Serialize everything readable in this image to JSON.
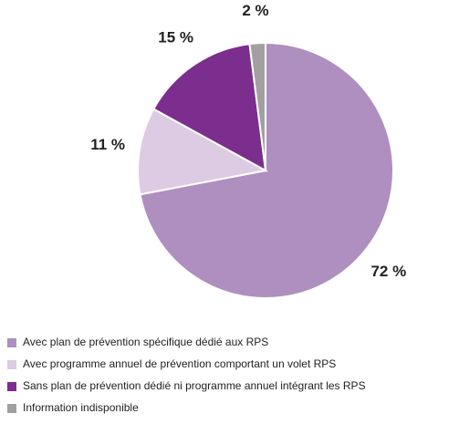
{
  "chart_data": {
    "type": "pie",
    "categories": [
      "Avec plan de prévention spécifique dédié aux RPS",
      "Avec programme annuel de prévention comportant un volet RPS",
      "Sans plan de prévention dédié ni programme annuel intégrant les RPS",
      "Information indisponible"
    ],
    "values": [
      72,
      11,
      15,
      2
    ],
    "value_labels": [
      "72 %",
      "11 %",
      "15 %",
      "2 %"
    ],
    "colors": [
      "#ae8fbf",
      "#dccbe3",
      "#7b2e8e",
      "#a0a0a0"
    ]
  }
}
